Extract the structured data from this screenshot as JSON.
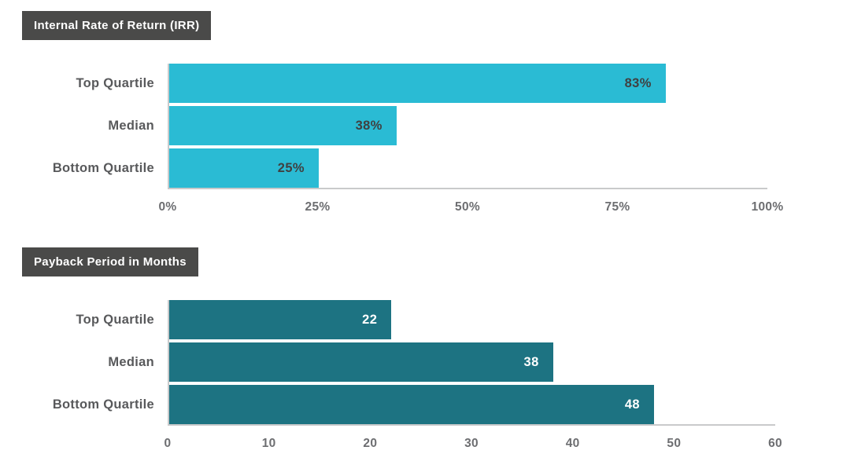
{
  "page": {
    "background": "#ffffff"
  },
  "colors": {
    "title_badge_bg": "#4a4a49",
    "title_badge_text": "#ffffff",
    "category_label": "#58595b",
    "tick_label": "#6d6e71",
    "axis_line": "#c9cacb",
    "irr_bar": "#2abbd4",
    "payback_bar": "#1d7382"
  },
  "chart_data": [
    {
      "type": "bar",
      "orientation": "horizontal",
      "title": "Internal Rate of Return (IRR)",
      "categories": [
        "Top Quartile",
        "Median",
        "Bottom Quartile"
      ],
      "values": [
        83,
        38,
        25
      ],
      "value_labels": [
        "83%",
        "38%",
        "25%"
      ],
      "xlim": [
        0,
        100
      ],
      "x_ticks": [
        "0%",
        "25%",
        "50%",
        "75%",
        "100%"
      ],
      "bar_color": "#2abbd4",
      "value_label_color": "#404041",
      "value_label_position": "inside-end",
      "grid": "off",
      "legend": "none"
    },
    {
      "type": "bar",
      "orientation": "horizontal",
      "title": "Payback Period in Months",
      "categories": [
        "Top Quartile",
        "Median",
        "Bottom Quartile"
      ],
      "values": [
        22,
        38,
        48
      ],
      "value_labels": [
        "22",
        "38",
        "48"
      ],
      "xlim": [
        0,
        60
      ],
      "x_ticks": [
        "0",
        "10",
        "20",
        "30",
        "40",
        "50",
        "60"
      ],
      "bar_color": "#1d7382",
      "value_label_color": "#ffffff",
      "value_label_position": "inside-end",
      "grid": "off",
      "legend": "none"
    }
  ]
}
